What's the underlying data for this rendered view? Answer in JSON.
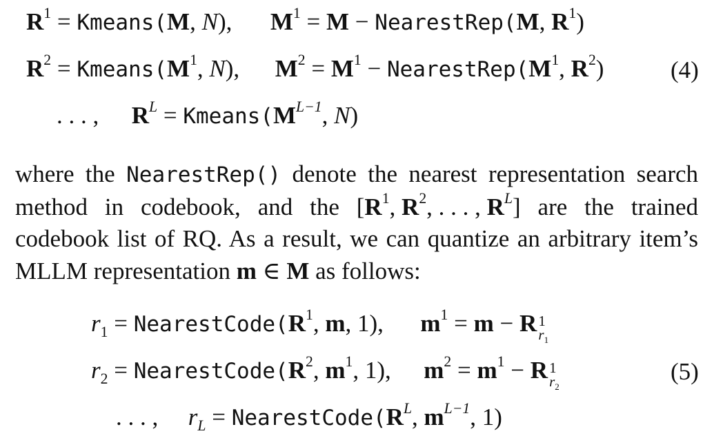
{
  "eq4": {
    "number": "(4)",
    "line1": {
      "lhs": "R",
      "lhs_sup": "1",
      "eq": " = ",
      "func": "Kmeans",
      "open": "(",
      "arg1": "M",
      "comma": ", ",
      "arg2": "N",
      "close": "),",
      "lhs2": "M",
      "lhs2_sup": "1",
      "eq2": " = ",
      "term1": "M",
      "minus": " − ",
      "func2": "NearestRep",
      "open2": "(",
      "arg3": "M",
      "comma2": ", ",
      "arg4": "R",
      "arg4_sup": "1",
      "close2": ")"
    },
    "line2": {
      "lhs": "R",
      "lhs_sup": "2",
      "eq": " = ",
      "func": "Kmeans",
      "open": "(",
      "arg1": "M",
      "arg1_sup": "1",
      "comma": ", ",
      "arg2": "N",
      "close": "),",
      "lhs2": "M",
      "lhs2_sup": "2",
      "eq2": " = ",
      "term1": "M",
      "term1_sup": "1",
      "minus": " − ",
      "func2": "NearestRep",
      "open2": "(",
      "arg3": "M",
      "arg3_sup": "1",
      "comma2": ", ",
      "arg4": "R",
      "arg4_sup": "2",
      "close2": ")"
    },
    "line3": {
      "dots": ". . . ,",
      "lhs": "R",
      "lhs_sup": "L",
      "eq": " = ",
      "func": "Kmeans",
      "open": "(",
      "arg1": "M",
      "arg1_sup": "L−1",
      "comma": ", ",
      "arg2": "N",
      "close": ")"
    }
  },
  "paragraph": {
    "t1": "where the ",
    "code": "NearestRep()",
    "t2": " denote the nearest representation search method in codebook, and the ",
    "list_open": "[",
    "r": "R",
    "sup1": "1",
    "sep": ", ",
    "sup2": "2",
    "dots": ", . . . , ",
    "supL": "L",
    "list_close": "]",
    "t3": " are the trained codebook list of RQ. As a result, we can quantize an arbitrary item’s MLLM representation ",
    "m": "m",
    "in": " ∈ ",
    "M": "M",
    "t4": " as follows:"
  },
  "eq5": {
    "number": "(5)",
    "line1": {
      "lhs": "r",
      "lhs_sub": "1",
      "eq": " = ",
      "func": "NearestCode",
      "open": "(",
      "arg1": "R",
      "arg1_sup": "1",
      "comma": ", ",
      "arg2": "m",
      "comma2": ", ",
      "arg3": "1",
      "close": "),",
      "lhs2": "m",
      "lhs2_sup": "1",
      "eq2": " = ",
      "term1": "m",
      "minus": " − ",
      "term2": "R",
      "term2_sup": "1",
      "term2_sub": "r",
      "term2_subsub": "1"
    },
    "line2": {
      "lhs": "r",
      "lhs_sub": "2",
      "eq": " = ",
      "func": "NearestCode",
      "open": "(",
      "arg1": "R",
      "arg1_sup": "2",
      "comma": ", ",
      "arg2": "m",
      "arg2_sup": "1",
      "comma2": ", ",
      "arg3": "1",
      "close": "),",
      "lhs2": "m",
      "lhs2_sup": "2",
      "eq2": " = ",
      "term1": "m",
      "term1_sup": "1",
      "minus": " − ",
      "term2": "R",
      "term2_sup": "1",
      "term2_sub": "r",
      "term2_subsub": "2"
    },
    "line3": {
      "dots": ". . . ,",
      "lhs": "r",
      "lhs_sub": "L",
      "eq": " = ",
      "func": "NearestCode",
      "open": "(",
      "arg1": "R",
      "arg1_sup": "L",
      "comma": ", ",
      "arg2": "m",
      "arg2_sup": "L−1",
      "comma2": ", ",
      "arg3": "1",
      "close": ")"
    }
  }
}
